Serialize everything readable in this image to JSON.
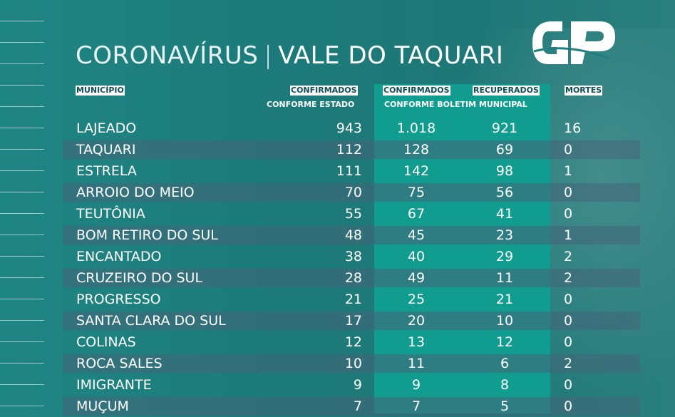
{
  "title": {
    "part1": "CORONAVÍRUS",
    "separator": "|",
    "part2": "VALE DO TAQUARI"
  },
  "logo": {
    "text": "GP"
  },
  "headers": {
    "municipio": "MUNICÍPIO",
    "confirmados_estado": "CONFIRMADOS",
    "confirmados_estado_sub": "CONFORME ESTADO",
    "confirmados_boletim": "CONFIRMADOS",
    "recuperados": "RECUPERADOS",
    "boletim_sub": "CONFORME BOLETIM MUNICIPAL",
    "mortes": "MORTES"
  },
  "colors": {
    "highlight": "#109c8e",
    "stripe": "#46647a",
    "header_text": "#0f4f55"
  },
  "rows": [
    {
      "name": "LAJEADO",
      "estado": "943",
      "boletim": "1.018",
      "recuperados": "921",
      "mortes": "16"
    },
    {
      "name": "TAQUARI",
      "estado": "112",
      "boletim": "128",
      "recuperados": "69",
      "mortes": "0"
    },
    {
      "name": "ESTRELA",
      "estado": "111",
      "boletim": "142",
      "recuperados": "98",
      "mortes": "1"
    },
    {
      "name": "ARROIO DO MEIO",
      "estado": "70",
      "boletim": "75",
      "recuperados": "56",
      "mortes": "0"
    },
    {
      "name": "TEUTÔNIA",
      "estado": "55",
      "boletim": "67",
      "recuperados": "41",
      "mortes": "0"
    },
    {
      "name": "BOM RETIRO DO SUL",
      "estado": "48",
      "boletim": "45",
      "recuperados": "23",
      "mortes": "1"
    },
    {
      "name": "ENCANTADO",
      "estado": "38",
      "boletim": "40",
      "recuperados": "29",
      "mortes": "2"
    },
    {
      "name": "CRUZEIRO DO SUL",
      "estado": "28",
      "boletim": "49",
      "recuperados": "11",
      "mortes": "2"
    },
    {
      "name": "PROGRESSO",
      "estado": "21",
      "boletim": "25",
      "recuperados": "21",
      "mortes": "0"
    },
    {
      "name": "SANTA CLARA DO SUL",
      "estado": "17",
      "boletim": "20",
      "recuperados": "10",
      "mortes": "0"
    },
    {
      "name": "COLINAS",
      "estado": "12",
      "boletim": "13",
      "recuperados": "12",
      "mortes": "0"
    },
    {
      "name": "ROCA SALES",
      "estado": "10",
      "boletim": "11",
      "recuperados": "6",
      "mortes": "2"
    },
    {
      "name": "IMIGRANTE",
      "estado": "9",
      "boletim": "9",
      "recuperados": "8",
      "mortes": "0"
    },
    {
      "name": "MUÇUM",
      "estado": "7",
      "boletim": "7",
      "recuperados": "5",
      "mortes": "0"
    }
  ]
}
